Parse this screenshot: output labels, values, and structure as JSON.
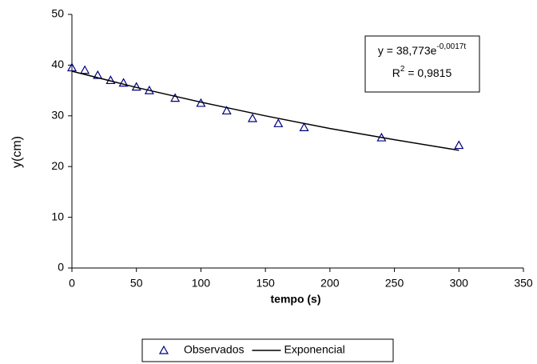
{
  "chart_data": {
    "type": "scatter",
    "xlabel": "tempo (s)",
    "ylabel": "y(cm)",
    "xlim": [
      0,
      350
    ],
    "xticks": [
      0,
      50,
      100,
      150,
      200,
      250,
      300,
      350
    ],
    "ylim": [
      0,
      50
    ],
    "yticks": [
      0,
      10,
      20,
      30,
      40,
      50
    ],
    "grid": false,
    "series": [
      {
        "name": "Observados",
        "color": "#000080",
        "marker": "triangle",
        "x": [
          0,
          10,
          20,
          30,
          40,
          50,
          60,
          80,
          100,
          120,
          140,
          160,
          180,
          240,
          300
        ],
        "values": [
          39.5,
          39,
          38,
          37,
          36.5,
          35.7,
          35,
          33.5,
          32.5,
          31,
          29.5,
          28.5,
          27.7,
          25.7,
          24.2
        ]
      },
      {
        "name": "Exponencial",
        "color": "#000000",
        "marker": "line",
        "x": [
          0,
          50,
          100,
          150,
          200,
          250,
          300
        ],
        "values": [
          38.8,
          35.6,
          32.7,
          30.0,
          27.5,
          25.3,
          23.2
        ]
      }
    ],
    "annotation": {
      "equation": [
        "y = 38,773e",
        "-0,0017t"
      ],
      "r2": [
        "R",
        "2",
        " = 0,9815"
      ]
    },
    "legend": "bottom"
  }
}
